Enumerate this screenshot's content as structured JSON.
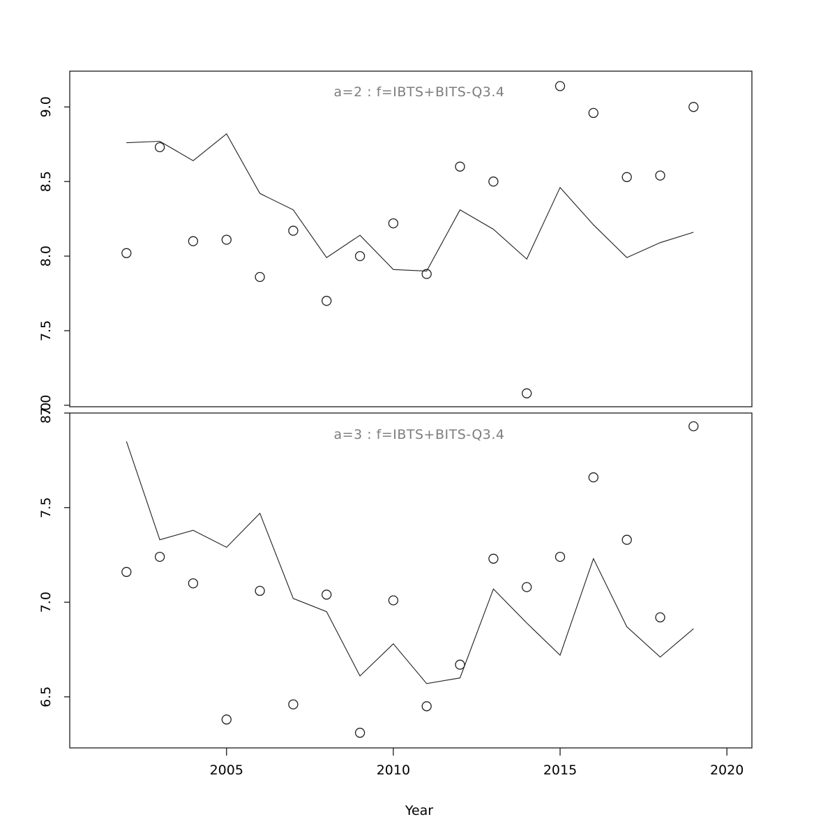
{
  "figure": {
    "background": "#ffffff",
    "axis_color": "#000000",
    "title_color": "#7d7d7d",
    "line_color": "#1f1f1f"
  },
  "xaxis": {
    "title": "Year",
    "tick_labels": [
      "2005",
      "2010",
      "2015",
      "2020"
    ],
    "tick_values": [
      2005,
      2010,
      2015,
      2020
    ],
    "range": [
      2000.3,
      2020.75
    ]
  },
  "chart_data": [
    {
      "type": "line",
      "title": "a=2  :  f=IBTS+BITS-Q3.4",
      "xlabel": "Year",
      "ylabel": "",
      "ylim": [
        6.99,
        9.24
      ],
      "ytick_labels": [
        "7.0",
        "7.5",
        "8.0",
        "8.5",
        "9.0"
      ],
      "ytick_values": [
        7.0,
        7.5,
        8.0,
        8.5,
        9.0
      ],
      "grid": false,
      "legend": "none",
      "x": [
        2002,
        2003,
        2004,
        2005,
        2006,
        2007,
        2008,
        2009,
        2010,
        2011,
        2012,
        2013,
        2014,
        2015,
        2016,
        2017,
        2018,
        2019
      ],
      "series": [
        {
          "name": "observed-points",
          "marker": "open-circle",
          "values": [
            8.02,
            8.73,
            8.1,
            8.11,
            7.86,
            8.17,
            7.7,
            8.0,
            8.22,
            7.88,
            8.6,
            8.5,
            7.08,
            9.14,
            8.96,
            8.53,
            8.54,
            9.0
          ]
        },
        {
          "name": "fitted-line",
          "marker": "none",
          "values": [
            8.76,
            8.77,
            8.64,
            8.82,
            8.42,
            8.31,
            7.99,
            8.14,
            7.91,
            7.9,
            8.31,
            8.18,
            7.98,
            8.46,
            8.21,
            7.99,
            8.09,
            8.16
          ]
        }
      ]
    },
    {
      "type": "line",
      "title": "a=3  :  f=IBTS+BITS-Q3.4",
      "xlabel": "Year",
      "ylabel": "",
      "ylim": [
        6.23,
        8.0
      ],
      "ytick_labels": [
        "6.5",
        "7.0",
        "7.5",
        "8.0"
      ],
      "ytick_values": [
        6.5,
        7.0,
        7.5,
        8.0
      ],
      "grid": false,
      "legend": "none",
      "x": [
        2002,
        2003,
        2004,
        2005,
        2006,
        2007,
        2008,
        2009,
        2010,
        2011,
        2012,
        2013,
        2014,
        2015,
        2016,
        2017,
        2018,
        2019
      ],
      "series": [
        {
          "name": "observed-points",
          "marker": "open-circle",
          "values": [
            7.16,
            7.24,
            7.1,
            6.38,
            7.06,
            6.46,
            7.04,
            6.31,
            7.01,
            6.45,
            6.67,
            7.23,
            7.08,
            7.24,
            7.66,
            7.33,
            6.92,
            7.93
          ]
        },
        {
          "name": "fitted-line",
          "marker": "none",
          "values": [
            7.85,
            7.33,
            7.38,
            7.29,
            7.47,
            7.02,
            6.95,
            6.61,
            6.78,
            6.57,
            6.6,
            7.07,
            6.89,
            6.72,
            7.23,
            6.87,
            6.71,
            6.86
          ]
        }
      ]
    }
  ]
}
